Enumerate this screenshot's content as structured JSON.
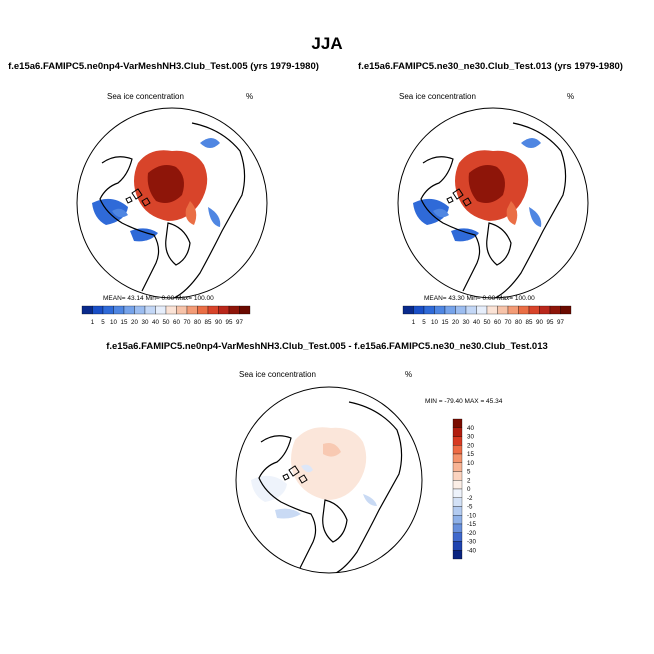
{
  "title": "JJA",
  "panels": [
    {
      "title": "f.e15a6.FAMIPC5.ne0np4-VarMeshNH3.Club_Test.005 (yrs 1979-1980)",
      "variable": "Sea ice concentration",
      "units": "%",
      "stats": "MEAN=  43.14  Min=   0.00  Max= 100.00"
    },
    {
      "title": "f.e15a6.FAMIPC5.ne30_ne30.Club_Test.013 (yrs 1979-1980)",
      "variable": "Sea ice concentration",
      "units": "%",
      "stats": "MEAN=  43.30  Min=   0.00  Max= 100.00"
    }
  ],
  "diff_panel": {
    "title": "f.e15a6.FAMIPC5.ne0np4-VarMeshNH3.Club_Test.005 - f.e15a6.FAMIPC5.ne30_ne30.Club_Test.013",
    "variable": "Sea ice concentration",
    "units": "%",
    "stats": "MIN = -79.40 MAX =  45.34"
  },
  "colorbar_levels": [
    "1",
    "5",
    "10",
    "15",
    "20",
    "30",
    "40",
    "50",
    "60",
    "70",
    "80",
    "85",
    "90",
    "95",
    "97"
  ],
  "colorbar_colors": [
    "#0a2a8c",
    "#1a4fc7",
    "#2f6ad8",
    "#4f86e2",
    "#76a3ea",
    "#9cbdf0",
    "#c3d7f6",
    "#e6eefb",
    "#fbe3d6",
    "#f7c3a9",
    "#f39b76",
    "#ea6e45",
    "#d8442a",
    "#b9271b",
    "#8e1509",
    "#6a0a00"
  ],
  "diff_levels": [
    "40",
    "30",
    "20",
    "15",
    "10",
    "5",
    "2",
    "0",
    "-2",
    "-5",
    "-10",
    "-15",
    "-20",
    "-30",
    "-40"
  ],
  "diff_colors": [
    "#7a0c00",
    "#b11d0f",
    "#d73a22",
    "#ee6b45",
    "#f4936c",
    "#f8b495",
    "#fbd3bf",
    "#fbeee6",
    "#eef3fb",
    "#d3e1f6",
    "#b3cbf0",
    "#8fb1e8",
    "#6890dc",
    "#3f68cc",
    "#1e43b0",
    "#0a2480"
  ]
}
